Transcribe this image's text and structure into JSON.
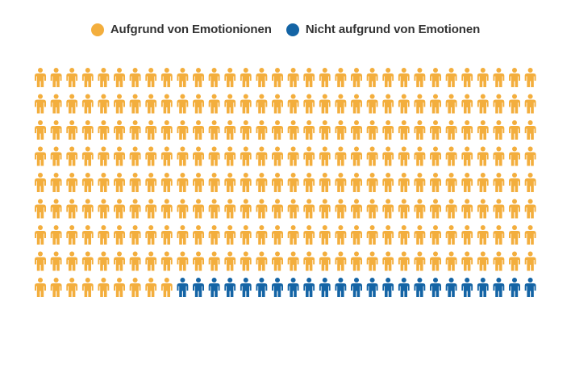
{
  "chart_data": {
    "type": "pictogram",
    "columns": 32,
    "rows": 9,
    "total_icons": 288,
    "series": [
      {
        "name": "Aufgrund von Emotionionen",
        "count": 265,
        "color": "#F3AE3D"
      },
      {
        "name": "Nicht aufgrund von Emotionen",
        "count": 23,
        "color": "#1464A5"
      }
    ],
    "legend_position": "top-center",
    "icon": "person-icon"
  }
}
